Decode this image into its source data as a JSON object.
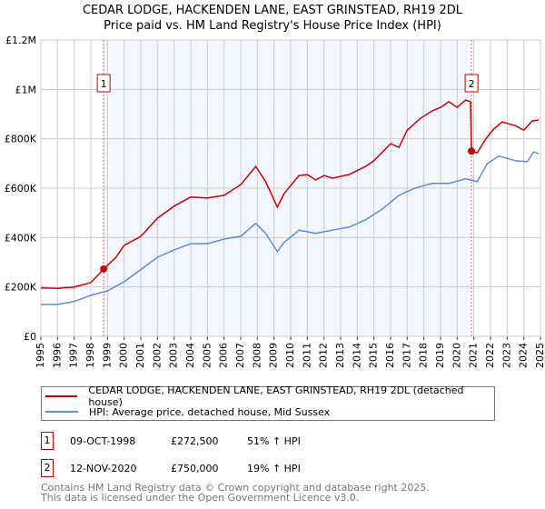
{
  "chart_data": {
    "type": "line",
    "title": "CEDAR LODGE, HACKENDEN LANE, EAST GRINSTEAD, RH19 2DL",
    "subtitle": "Price paid vs. HM Land Registry's House Price Index (HPI)",
    "xlim": [
      1995,
      2025
    ],
    "ylim": [
      0,
      1200000
    ],
    "x_ticks": [
      "1995",
      "1996",
      "1997",
      "1998",
      "1999",
      "2000",
      "2001",
      "2002",
      "2003",
      "2004",
      "2005",
      "2006",
      "2007",
      "2008",
      "2009",
      "2010",
      "2011",
      "2012",
      "2013",
      "2014",
      "2015",
      "2016",
      "2017",
      "2018",
      "2019",
      "2020",
      "2021",
      "2022",
      "2023",
      "2024",
      "2025"
    ],
    "y_ticks": [
      {
        "v": 0,
        "label": "£0"
      },
      {
        "v": 200000,
        "label": "£200K"
      },
      {
        "v": 400000,
        "label": "£400K"
      },
      {
        "v": 600000,
        "label": "£600K"
      },
      {
        "v": 800000,
        "label": "£800K"
      },
      {
        "v": 1000000,
        "label": "£1M"
      },
      {
        "v": 1200000,
        "label": "£1.2M"
      }
    ],
    "grid": true,
    "shaded_range": [
      1998.77,
      2020.86
    ],
    "series": [
      {
        "name": "CEDAR LODGE, HACKENDEN LANE, EAST GRINSTEAD, RH19 2DL (detached house)",
        "color": "#cc0000",
        "x": [
          1995,
          1996,
          1997,
          1998,
          1998.77,
          1999.5,
          2000,
          2001,
          2002,
          2003,
          2004,
          2005,
          2006,
          2007,
          2007.9,
          2008.5,
          2009.2,
          2009.6,
          2010.5,
          2011,
          2011.5,
          2012,
          2012.5,
          2013.5,
          2014.5,
          2015,
          2016,
          2016.5,
          2017,
          2017.8,
          2018.5,
          2019,
          2019.5,
          2020,
          2020.5,
          2020.8,
          2020.86,
          2021.2,
          2021.7,
          2022.2,
          2022.7,
          2023.5,
          2024,
          2024.5,
          2024.9
        ],
        "y": [
          196000,
          194000,
          200000,
          217000,
          272500,
          319000,
          368000,
          405000,
          478000,
          527000,
          564000,
          560000,
          571000,
          614000,
          688000,
          626000,
          523000,
          578000,
          651000,
          655000,
          633000,
          651000,
          640000,
          655000,
          688000,
          711000,
          780000,
          765000,
          835000,
          883000,
          913000,
          927000,
          950000,
          927000,
          957000,
          950000,
          750000,
          743000,
          798000,
          840000,
          868000,
          853000,
          835000,
          872000,
          876000
        ]
      },
      {
        "name": "HPI: Average price, detached house, Mid Sussex",
        "color": "#5b8fd4",
        "x": [
          1995,
          1996,
          1997,
          1998,
          1999,
          2000,
          2001,
          2002,
          2003,
          2004,
          2005,
          2006,
          2007,
          2007.9,
          2008.5,
          2009.2,
          2009.6,
          2010.5,
          2011.5,
          2012.5,
          2013.5,
          2014.5,
          2015.5,
          2016.5,
          2017.5,
          2018.5,
          2019.5,
          2020.5,
          2021.2,
          2021.8,
          2022.5,
          2023.5,
          2024.2,
          2024.6,
          2024.9
        ],
        "y": [
          129000,
          129000,
          141000,
          166000,
          184000,
          221000,
          270000,
          320000,
          350000,
          375000,
          375000,
          394000,
          405000,
          457000,
          417000,
          343000,
          380000,
          430000,
          417000,
          430000,
          442000,
          472000,
          515000,
          571000,
          601000,
          619000,
          619000,
          638000,
          626000,
          699000,
          730000,
          711000,
          707000,
          747000,
          739000
        ]
      }
    ],
    "annotations": [
      {
        "label": "1",
        "x": 1998.77,
        "y": 272500
      },
      {
        "label": "2",
        "x": 2020.86,
        "y": 750000
      }
    ]
  },
  "legend": {
    "red": "CEDAR LODGE, HACKENDEN LANE, EAST GRINSTEAD, RH19 2DL (detached house)",
    "blue": "HPI: Average price, detached house, Mid Sussex"
  },
  "transactions": [
    {
      "num": "1",
      "date": "09-OCT-1998",
      "price": "£272,500",
      "hpi": "51% ↑ HPI"
    },
    {
      "num": "2",
      "date": "12-NOV-2020",
      "price": "£750,000",
      "hpi": "19% ↑ HPI"
    }
  ],
  "footer": {
    "line1": "Contains HM Land Registry data © Crown copyright and database right 2025.",
    "line2": "This data is licensed under the Open Government Licence v3.0."
  }
}
